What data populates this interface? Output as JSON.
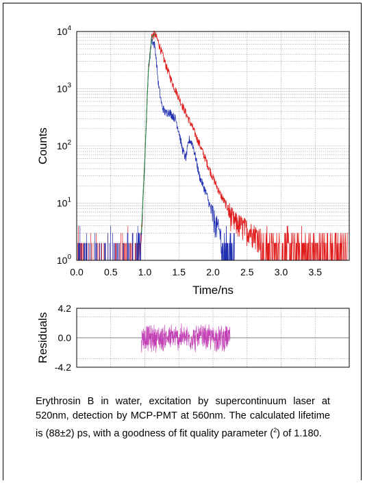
{
  "chart_data": [
    {
      "type": "line",
      "title": "",
      "xlabel": "Time/ns",
      "ylabel": "Counts",
      "yscale": "log",
      "xlim": [
        0,
        4.0
      ],
      "ylim": [
        1,
        10000
      ],
      "x_ticks": [
        "0.0",
        "0.5",
        "1.0",
        "1.5",
        "2.0",
        "2.5",
        "3.0",
        "3.5"
      ],
      "y_ticks": [
        {
          "base": "10",
          "exp": "0"
        },
        {
          "base": "10",
          "exp": "1"
        },
        {
          "base": "10",
          "exp": "2"
        },
        {
          "base": "10",
          "exp": "3"
        },
        {
          "base": "10",
          "exp": "4"
        }
      ],
      "grid": true,
      "series": [
        {
          "color": "#1f2fb0",
          "points": [
            [
              0.9,
              1
            ],
            [
              0.95,
              3
            ],
            [
              1.0,
              60
            ],
            [
              1.05,
              2000
            ],
            [
              1.1,
              7500
            ],
            [
              1.15,
              5500
            ],
            [
              1.2,
              1200
            ],
            [
              1.25,
              500
            ],
            [
              1.3,
              380
            ],
            [
              1.35,
              400
            ],
            [
              1.4,
              350
            ],
            [
              1.45,
              300
            ],
            [
              1.5,
              180
            ],
            [
              1.55,
              90
            ],
            [
              1.6,
              60
            ],
            [
              1.65,
              130
            ],
            [
              1.7,
              110
            ],
            [
              1.75,
              60
            ],
            [
              1.8,
              30
            ],
            [
              1.9,
              15
            ],
            [
              2.0,
              6
            ],
            [
              2.1,
              3
            ],
            [
              2.2,
              1.5
            ],
            [
              2.3,
              1
            ]
          ]
        },
        {
          "color": "#e01b1b",
          "points": [
            [
              0.9,
              1
            ],
            [
              0.95,
              3
            ],
            [
              1.0,
              60
            ],
            [
              1.05,
              2000
            ],
            [
              1.1,
              8500
            ],
            [
              1.15,
              9000
            ],
            [
              1.2,
              6500
            ],
            [
              1.25,
              4200
            ],
            [
              1.3,
              2800
            ],
            [
              1.4,
              1300
            ],
            [
              1.5,
              700
            ],
            [
              1.6,
              380
            ],
            [
              1.7,
              210
            ],
            [
              1.8,
              110
            ],
            [
              1.9,
              55
            ],
            [
              2.0,
              28
            ],
            [
              2.1,
              15
            ],
            [
              2.2,
              9
            ],
            [
              2.3,
              5
            ],
            [
              2.5,
              3.5
            ],
            [
              2.7,
              2.5
            ],
            [
              2.9,
              2.5
            ],
            [
              3.1,
              2
            ],
            [
              3.3,
              1.5
            ],
            [
              3.5,
              1.3
            ],
            [
              3.9,
              1.2
            ]
          ]
        },
        {
          "color": "#1a8a3a",
          "points": [
            [
              0.95,
              3
            ],
            [
              1.0,
              60
            ],
            [
              1.05,
              2000
            ],
            [
              1.1,
              8000
            ],
            [
              1.15,
              9000
            ]
          ]
        }
      ]
    },
    {
      "type": "line",
      "title": "",
      "xlabel": "",
      "ylabel": "Residuals",
      "xlim": [
        0,
        4.0
      ],
      "ylim": [
        -4.2,
        4.2
      ],
      "y_ticks": [
        "4.2",
        "0.0",
        "-4.2"
      ],
      "grid": true,
      "series": [
        {
          "color": "#c23fb4",
          "x_range": [
            0.95,
            2.25
          ],
          "amplitude": 2.0
        }
      ]
    }
  ],
  "caption": {
    "text_before": "Erythrosin B in water, excitation by supercontinuum laser at 520nm, detection by MCP-PMT at 560nm. The calculated lifetime is (88±2) ps, with a goodness of fit quality parameter (",
    "symbol": "",
    "superscript": "2",
    "text_after": ") of 1.180."
  }
}
